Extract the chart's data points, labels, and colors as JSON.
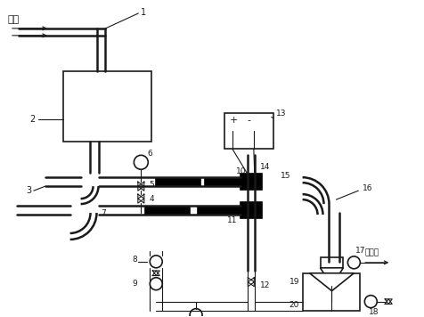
{
  "bg_color": "#ffffff",
  "line_color": "#1a1a1a",
  "figsize": [
    4.77,
    3.56
  ],
  "dpi": 100,
  "labels": {
    "inlet": "进水",
    "vacuum": "抽真空"
  }
}
